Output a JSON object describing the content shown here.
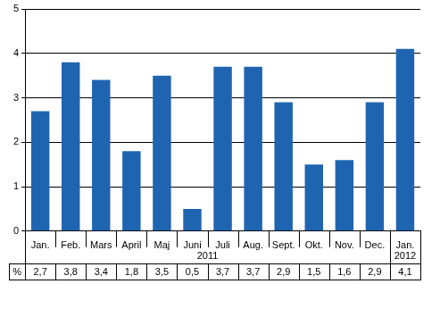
{
  "chart_data": {
    "type": "bar",
    "categories": [
      "Jan.",
      "Feb.",
      "Mars",
      "April",
      "Maj",
      "Juni",
      "Juli",
      "Aug.",
      "Sept.",
      "Okt.",
      "Nov.",
      "Dec.",
      "Jan."
    ],
    "groups": [
      {
        "label": "2011",
        "start": 0,
        "end": 11
      },
      {
        "label": "2012",
        "start": 12,
        "end": 12
      }
    ],
    "values": [
      2.7,
      3.8,
      3.4,
      1.8,
      3.5,
      0.5,
      3.7,
      3.7,
      2.9,
      1.5,
      1.6,
      2.9,
      4.1
    ],
    "value_labels": [
      "2,7",
      "3,8",
      "3,4",
      "1,8",
      "3,5",
      "0,5",
      "3,7",
      "3,7",
      "2,9",
      "1,5",
      "1,6",
      "2,9",
      "4,1"
    ],
    "value_label_header": "%",
    "color": "#1f64b0",
    "ylim": [
      0,
      5
    ],
    "yticks": [
      0,
      1,
      2,
      3,
      4,
      5
    ],
    "grid": true,
    "data_labels": true
  }
}
